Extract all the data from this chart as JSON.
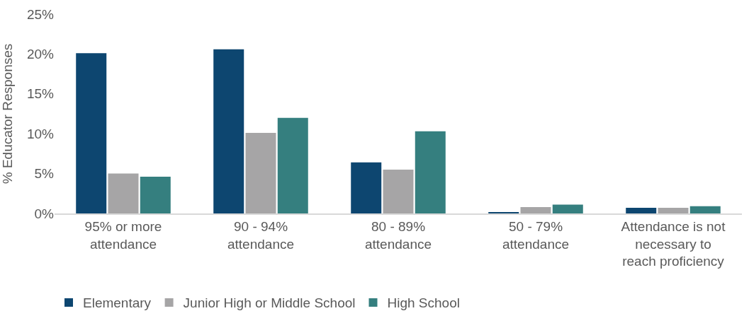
{
  "chart_data": {
    "type": "bar",
    "ylabel": "% Educator Responses",
    "categories": [
      "95% or more attendance",
      "90 - 94% attendance",
      "80 - 89% attendance",
      "50 - 79% attendance",
      "Attendance is not necessary to reach proficiency"
    ],
    "series": [
      {
        "name": "Elementary",
        "color": "#0d4670",
        "values": [
          20.1,
          20.6,
          6.4,
          0.1,
          0.7
        ]
      },
      {
        "name": "Junior High or Middle School",
        "color": "#a6a5a6",
        "values": [
          5.0,
          10.1,
          5.5,
          0.8,
          0.7
        ]
      },
      {
        "name": "High School",
        "color": "#357f7f",
        "values": [
          4.6,
          12.0,
          10.3,
          1.1,
          0.9
        ]
      }
    ],
    "ylim": [
      0,
      25
    ],
    "yticks": [
      {
        "value": 0,
        "label": "0%"
      },
      {
        "value": 5,
        "label": "5%"
      },
      {
        "value": 10,
        "label": "10%"
      },
      {
        "value": 15,
        "label": "15%"
      },
      {
        "value": 20,
        "label": "20%"
      },
      {
        "value": 25,
        "label": "25%"
      }
    ],
    "grid": false,
    "legend": "bottom"
  }
}
